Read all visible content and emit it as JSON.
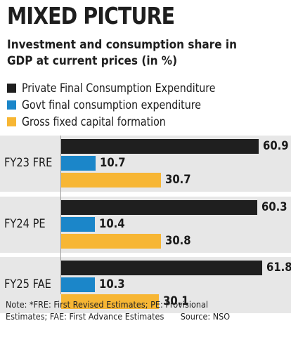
{
  "title": "MIXED PICTURE",
  "subtitle": "Investment and consumption share in GDP at current prices (in %)",
  "colors": {
    "private": "#1f1f1f",
    "govt": "#1b86c9",
    "gfcf": "#f7b634",
    "group_bg": "#e7e7e7"
  },
  "chart_data": {
    "type": "bar",
    "orientation": "horizontal",
    "title": "MIXED PICTURE",
    "subtitle": "Investment and consumption share in GDP at current prices (in %)",
    "categories": [
      "FY23 FRE",
      "FY24 PE",
      "FY25 FAE"
    ],
    "series": [
      {
        "name": "Private Final Consumption Expenditure",
        "values": [
          60.9,
          60.3,
          61.8
        ],
        "color": "#1f1f1f"
      },
      {
        "name": "Govt final consumption expenditure",
        "values": [
          10.7,
          10.4,
          10.3
        ],
        "color": "#1b86c9"
      },
      {
        "name": "Gross fixed capital formation",
        "values": [
          30.7,
          30.8,
          30.1
        ],
        "color": "#f7b634"
      }
    ],
    "xlim": [
      0,
      65
    ],
    "grid": false,
    "legend": "top-left",
    "value_labels": true
  },
  "footnote": {
    "line1": "Note: *FRE: First Revised Estimates; PE: Provisional",
    "line2": "Estimates; FAE: First Advance Estimates",
    "source": "Source: NSO"
  }
}
